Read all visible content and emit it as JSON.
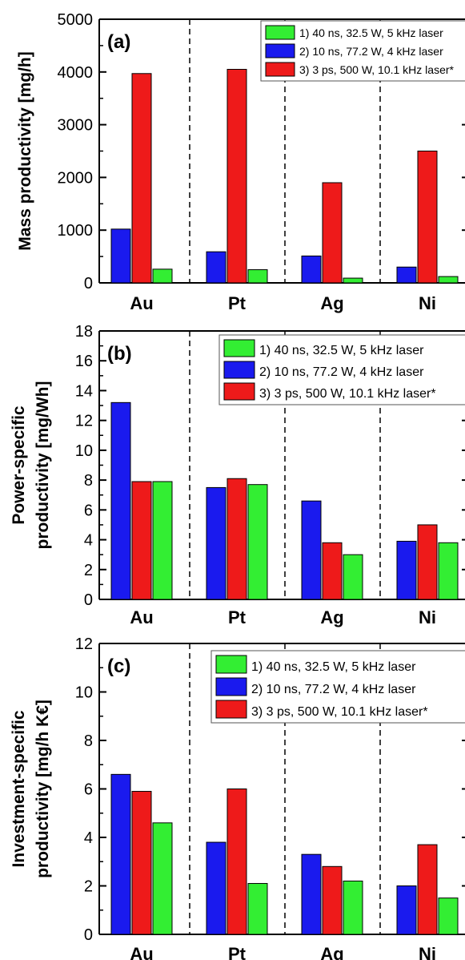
{
  "colors": {
    "series1": "#33ee33",
    "series2": "#1a1aee",
    "series3": "#ee1a1a"
  },
  "chart_data": [
    {
      "type": "bar",
      "panel_label": "(a)",
      "ylabel": "Mass productivity [mg/h]",
      "ylim": [
        0,
        5000
      ],
      "yticks": [
        0,
        1000,
        2000,
        3000,
        4000,
        5000
      ],
      "categories": [
        "Au",
        "Pt",
        "Ag",
        "Ni"
      ],
      "legend_position": "top-right",
      "legend": [
        "1)  40 ns, 32.5 W, 5 kHz laser",
        "2)  10 ns, 77.2 W, 4 kHz laser",
        "3)  3 ps, 500 W, 10.1 kHz laser*"
      ],
      "bar_order": [
        2,
        3,
        1
      ],
      "series": [
        {
          "name": "1)  40 ns, 32.5 W, 5 kHz laser",
          "values": [
            260,
            250,
            90,
            120
          ]
        },
        {
          "name": "2)  10 ns, 77.2 W, 4 kHz laser",
          "values": [
            1020,
            590,
            510,
            300
          ]
        },
        {
          "name": "3)  3 ps, 500 W, 10.1 kHz laser*",
          "values": [
            3970,
            4050,
            1900,
            2500
          ]
        }
      ]
    },
    {
      "type": "bar",
      "panel_label": "(b)",
      "ylabel": [
        "Power-specific",
        "productivity [mg/Wh]"
      ],
      "ylim": [
        0,
        18
      ],
      "yticks": [
        0,
        2,
        4,
        6,
        8,
        10,
        12,
        14,
        16,
        18
      ],
      "categories": [
        "Au",
        "Pt",
        "Ag",
        "Ni"
      ],
      "legend_position": "top-right",
      "legend": [
        "1) 40 ns, 32.5 W, 5 kHz laser",
        "2) 10 ns, 77.2 W, 4 kHz laser",
        "3) 3 ps, 500 W, 10.1 kHz laser*"
      ],
      "bar_order": [
        2,
        3,
        1
      ],
      "series": [
        {
          "name": "1) 40 ns, 32.5 W, 5 kHz laser",
          "values": [
            7.9,
            7.7,
            3.0,
            3.8
          ]
        },
        {
          "name": "2) 10 ns, 77.2 W, 4 kHz laser",
          "values": [
            13.2,
            7.5,
            6.6,
            3.9
          ]
        },
        {
          "name": "3) 3 ps, 500 W, 10.1 kHz laser*",
          "values": [
            7.9,
            8.1,
            3.8,
            5.0
          ]
        }
      ]
    },
    {
      "type": "bar",
      "panel_label": "(c)",
      "ylabel": [
        "Investment-specific",
        "productivity [mg/h K€]"
      ],
      "ylim": [
        0,
        12
      ],
      "yticks": [
        0,
        2,
        4,
        6,
        8,
        10,
        12
      ],
      "categories": [
        "Au",
        "Pt",
        "Ag",
        "Ni"
      ],
      "legend_position": "top-right",
      "legend": [
        "1) 40 ns, 32.5 W, 5 kHz laser",
        "2) 10 ns, 77.2 W, 4 kHz laser",
        "3) 3 ps, 500 W, 10.1 kHz laser*"
      ],
      "bar_order": [
        2,
        3,
        1
      ],
      "series": [
        {
          "name": "1) 40 ns, 32.5 W, 5 kHz laser",
          "values": [
            4.6,
            2.1,
            2.2,
            1.5
          ]
        },
        {
          "name": "2) 10 ns, 77.2 W, 4 kHz laser",
          "values": [
            6.6,
            3.8,
            3.3,
            2.0
          ]
        },
        {
          "name": "3) 3 ps, 500 W, 10.1 kHz laser*",
          "values": [
            5.9,
            6.0,
            2.8,
            3.7
          ]
        }
      ]
    }
  ]
}
